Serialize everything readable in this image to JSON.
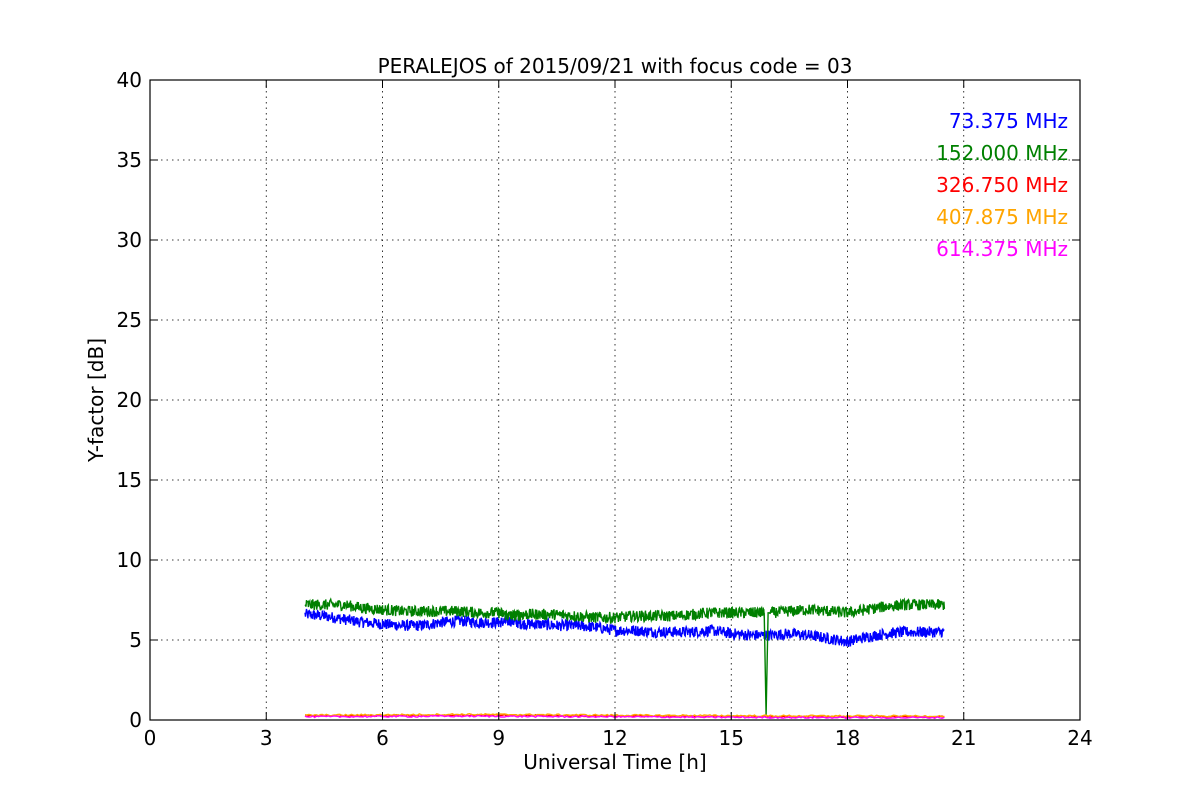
{
  "chart_data": {
    "type": "line",
    "title": "PERALEJOS of 2015/09/21 with focus code = 03",
    "xlabel": "Universal Time [h]",
    "ylabel": "Y-factor [dB]",
    "xlim": [
      0,
      24
    ],
    "ylim": [
      0,
      40
    ],
    "xticks": [
      0,
      3,
      6,
      9,
      12,
      15,
      18,
      21,
      24
    ],
    "yticks": [
      0,
      5,
      10,
      15,
      20,
      25,
      30,
      35,
      40
    ],
    "grid": true,
    "legend_position": "top-right",
    "series": [
      {
        "name": "73.375 MHz",
        "color": "#0000ff",
        "x": [
          4.0,
          4.5,
          5.0,
          5.5,
          6.0,
          6.5,
          7.0,
          7.5,
          8.0,
          8.5,
          9.0,
          9.3,
          9.6,
          10.0,
          10.5,
          11.0,
          11.5,
          12.0,
          12.5,
          13.0,
          13.5,
          14.0,
          14.5,
          15.0,
          15.5,
          16.0,
          16.5,
          17.0,
          17.5,
          18.0,
          18.5,
          19.0,
          19.5,
          20.0,
          20.5
        ],
        "y": [
          6.6,
          6.5,
          6.3,
          6.1,
          6.0,
          5.9,
          5.9,
          6.1,
          6.2,
          6.1,
          6.1,
          6.2,
          6.0,
          6.0,
          5.9,
          5.9,
          5.8,
          5.6,
          5.6,
          5.5,
          5.5,
          5.5,
          5.6,
          5.4,
          5.3,
          5.3,
          5.4,
          5.3,
          5.1,
          4.9,
          5.2,
          5.4,
          5.5,
          5.5,
          5.5
        ]
      },
      {
        "name": "152.000 MHz",
        "color": "#008000",
        "x": [
          4.0,
          4.5,
          5.0,
          5.5,
          6.0,
          6.5,
          7.0,
          7.5,
          8.0,
          8.5,
          9.0,
          9.3,
          9.6,
          10.0,
          10.5,
          11.0,
          11.5,
          12.0,
          12.5,
          13.0,
          13.5,
          14.0,
          14.5,
          15.0,
          15.5,
          15.85,
          15.9,
          15.95,
          16.0,
          16.5,
          17.0,
          17.5,
          18.0,
          18.5,
          19.0,
          19.5,
          20.0,
          20.5
        ],
        "y": [
          7.2,
          7.2,
          7.2,
          7.0,
          6.9,
          6.8,
          6.8,
          6.8,
          6.8,
          6.7,
          6.7,
          6.5,
          6.6,
          6.6,
          6.6,
          6.5,
          6.4,
          6.4,
          6.5,
          6.5,
          6.5,
          6.6,
          6.7,
          6.7,
          6.7,
          6.7,
          0.3,
          6.7,
          6.7,
          6.8,
          6.9,
          6.8,
          6.7,
          6.9,
          7.1,
          7.2,
          7.2,
          7.2
        ]
      },
      {
        "name": "326.750 MHz",
        "color": "#ff0000",
        "x": [
          4.0,
          6.0,
          8.0,
          10.0,
          12.0,
          14.0,
          16.0,
          18.0,
          20.5
        ],
        "y": [
          0.25,
          0.28,
          0.3,
          0.28,
          0.25,
          0.22,
          0.2,
          0.2,
          0.2
        ]
      },
      {
        "name": "407.875 MHz",
        "color": "#ffa500",
        "x": [
          4.0,
          6.0,
          8.0,
          10.0,
          12.0,
          14.0,
          16.0,
          18.0,
          20.5
        ],
        "y": [
          0.3,
          0.32,
          0.35,
          0.33,
          0.3,
          0.28,
          0.26,
          0.25,
          0.25
        ]
      },
      {
        "name": "614.375 MHz",
        "color": "#ff00ff",
        "x": [
          4.0,
          6.0,
          8.0,
          10.0,
          12.0,
          14.0,
          16.0,
          18.0,
          20.5
        ],
        "y": [
          0.2,
          0.22,
          0.24,
          0.22,
          0.2,
          0.18,
          0.16,
          0.15,
          0.15
        ]
      }
    ]
  }
}
